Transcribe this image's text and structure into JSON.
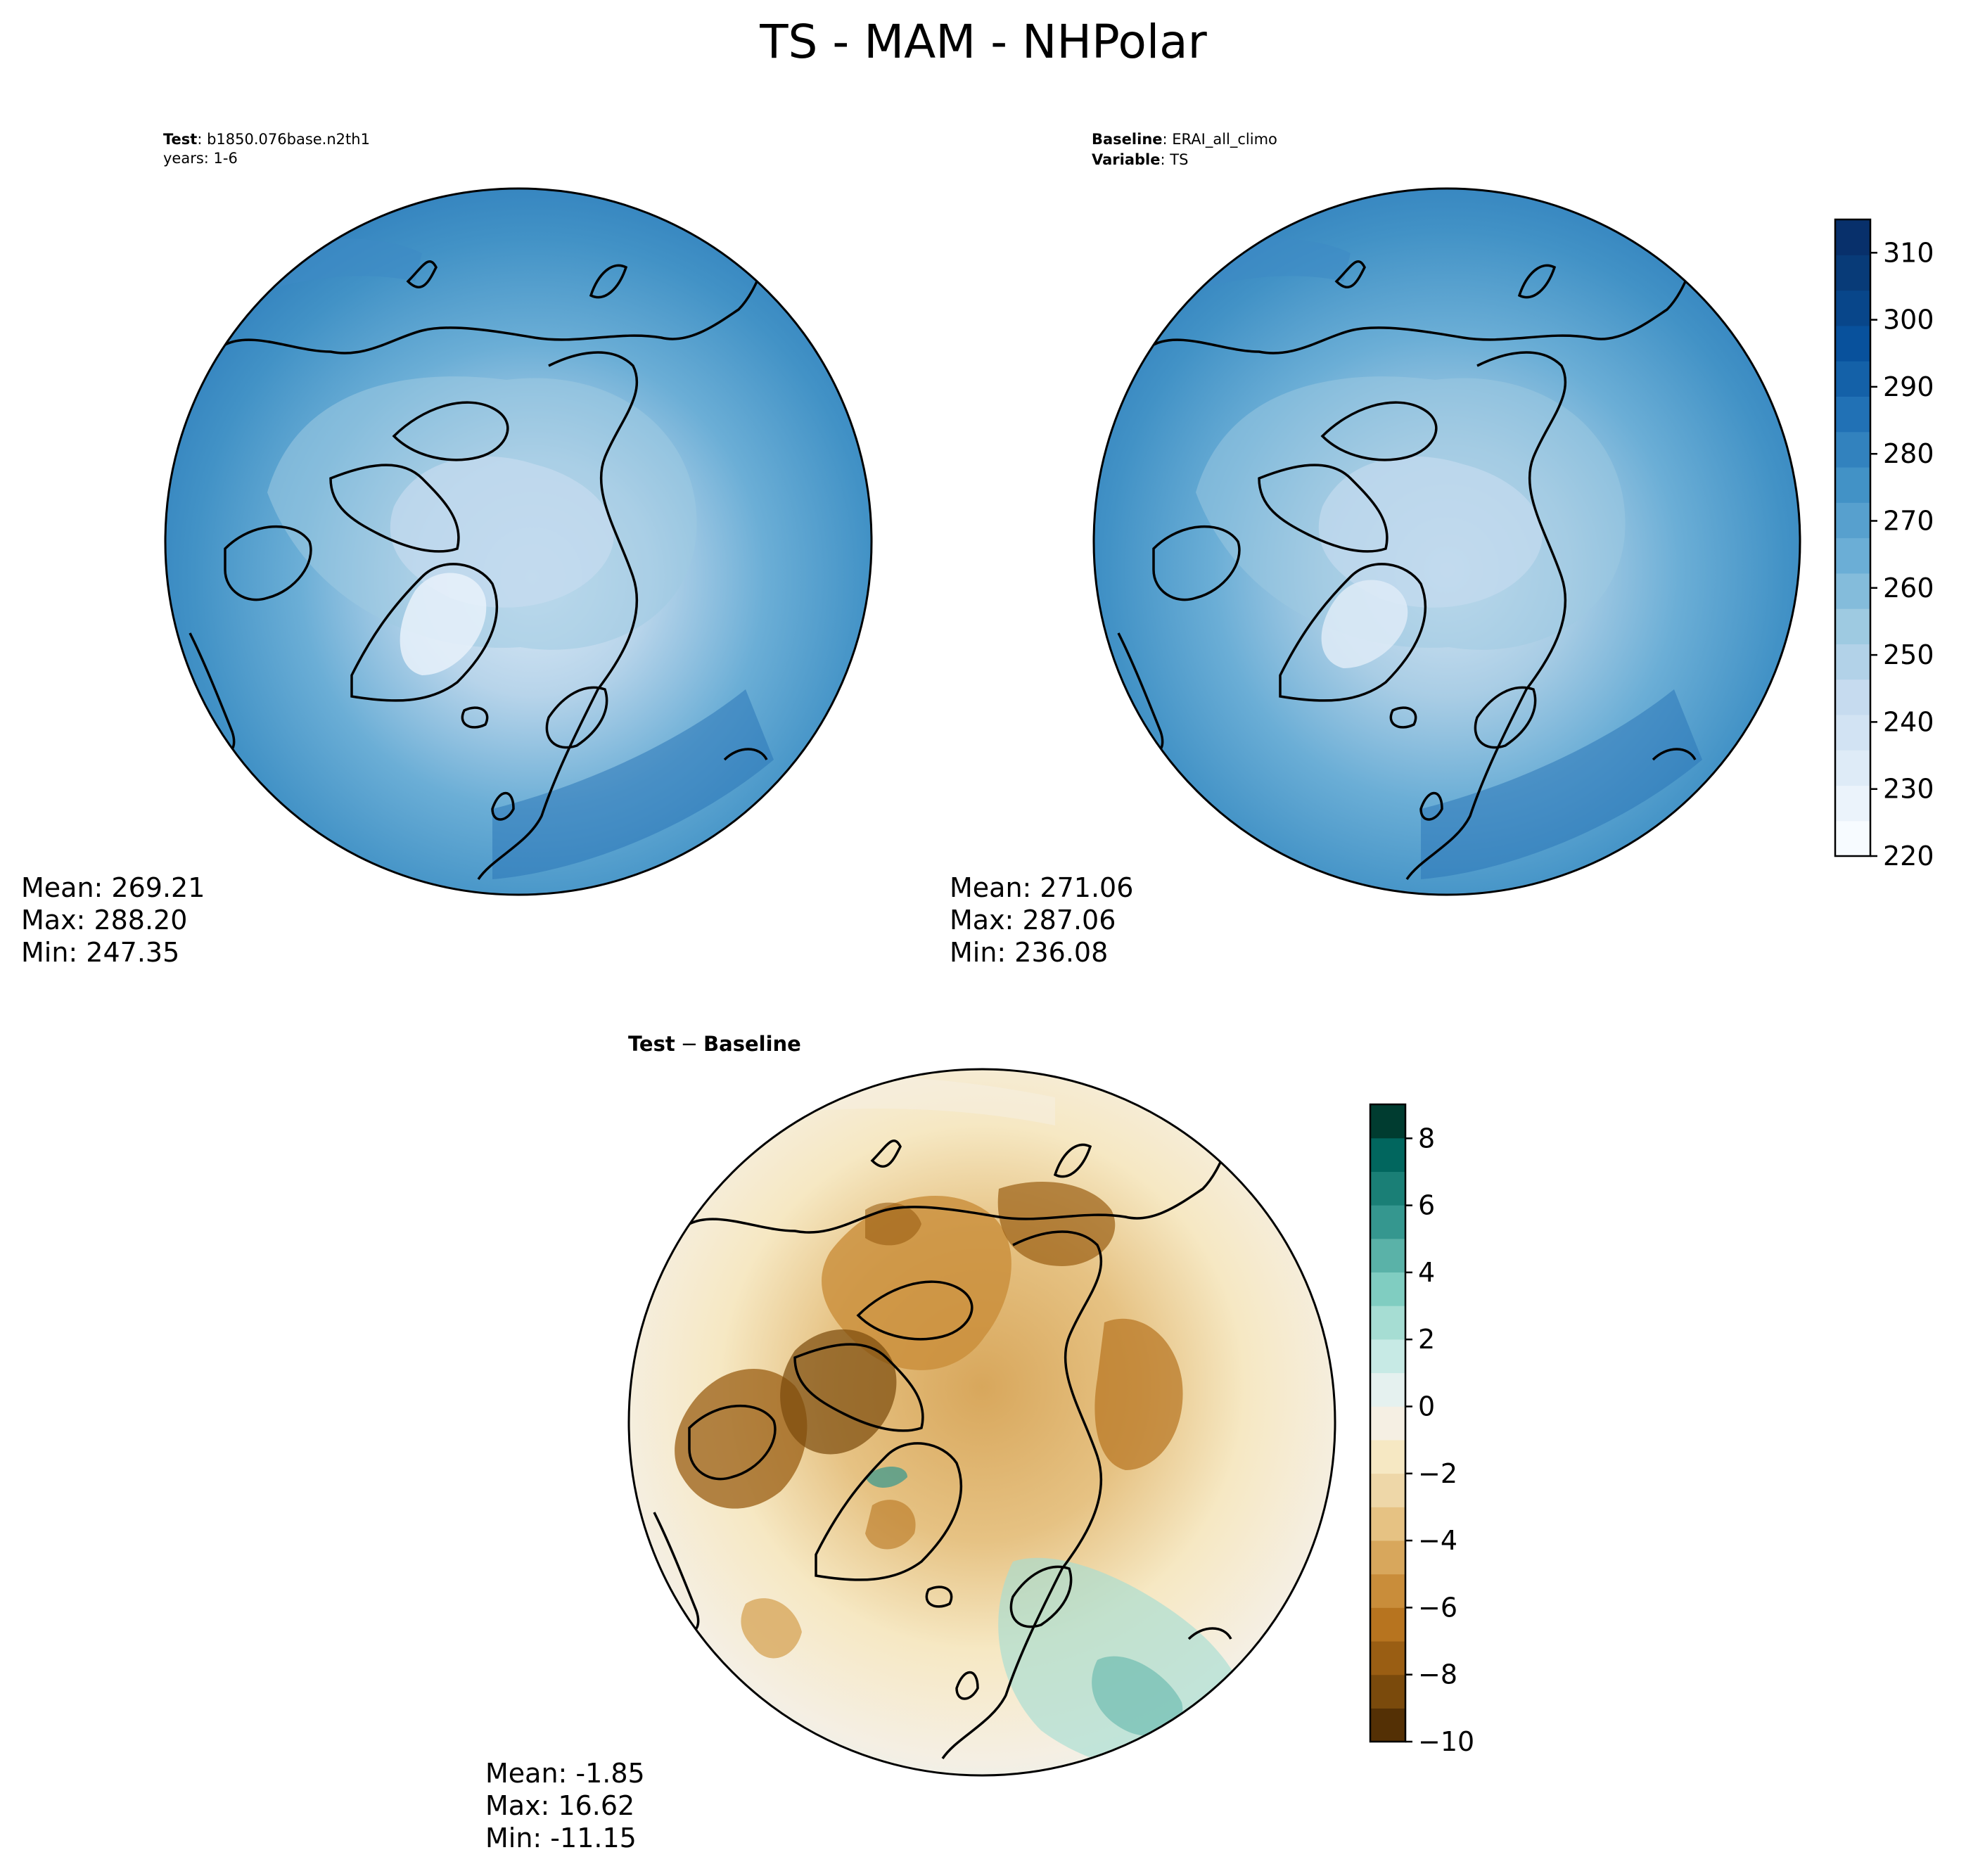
{
  "figure": {
    "title": "TS - MAM - NHPolar"
  },
  "panels": {
    "test": {
      "header_bold": "Test",
      "header_value": "b1850.076base.n2th1",
      "header_line2": "years: 1-6",
      "stats": {
        "mean": "Mean: 269.21",
        "max": "Max: 288.20",
        "min": "Min: 247.35"
      }
    },
    "baseline": {
      "header_bold": "Baseline",
      "header_value": "ERAI_all_climo",
      "header2_bold": "Variable",
      "header2_value": "TS",
      "stats": {
        "mean": "Mean: 271.06",
        "max": "Max: 287.06",
        "min": "Min: 236.08"
      }
    },
    "diff": {
      "title_bold_a": "Test",
      "title_minus": "−",
      "title_bold_b": "Baseline",
      "stats": {
        "mean": "Mean: -1.85",
        "max": "Max: 16.62",
        "min": "Min: -11.15"
      }
    }
  },
  "colorbars": {
    "temperature": {
      "ticks": [
        "220",
        "230",
        "240",
        "250",
        "260",
        "270",
        "280",
        "290",
        "300",
        "310"
      ],
      "colors": [
        "#f7fbff",
        "#ebf3fb",
        "#deebf7",
        "#d2e3f3",
        "#c6dbef",
        "#b2d2e8",
        "#9ecae1",
        "#84bcdb",
        "#6baed6",
        "#57a0ce",
        "#4292c6",
        "#3282be",
        "#2171b5",
        "#1461a8",
        "#08519c",
        "#08468a",
        "#083b78",
        "#08306b"
      ]
    },
    "difference": {
      "ticks": [
        "−10",
        "−8",
        "−6",
        "−4",
        "−2",
        "0",
        "2",
        "4",
        "6",
        "8"
      ],
      "colors": [
        "#543005",
        "#7a4a0c",
        "#9a5e13",
        "#b7741f",
        "#c98d3a",
        "#d8a75c",
        "#e6c283",
        "#eed7a8",
        "#f6e8c3",
        "#f5efe3",
        "#e5f1ef",
        "#c7eae5",
        "#a6ddd3",
        "#80cdc1",
        "#5ab2a8",
        "#35978f",
        "#1a7f76",
        "#01665e",
        "#003c30"
      ]
    }
  }
}
